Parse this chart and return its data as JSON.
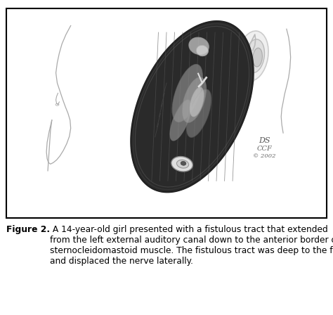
{
  "figure_label": "Figure 2.",
  "caption_rest": " A 14-year-old girl presented with a fistulous tract that extended\nfrom the left external auditory canal down to the anterior border of the\nsternocleidomastoid muscle. The fistulous tract was deep to the facial nerve\nand displaced the nerve laterally.",
  "border_color": "#000000",
  "caption_fontsize": 8.8,
  "fig_width": 4.74,
  "fig_height": 4.48,
  "dpi": 100,
  "watermark_line1": "DS",
  "watermark_line2": "CCF",
  "watermark_line3": "© 2002",
  "bg_color": "#ffffff",
  "image_bg": "#ffffff"
}
